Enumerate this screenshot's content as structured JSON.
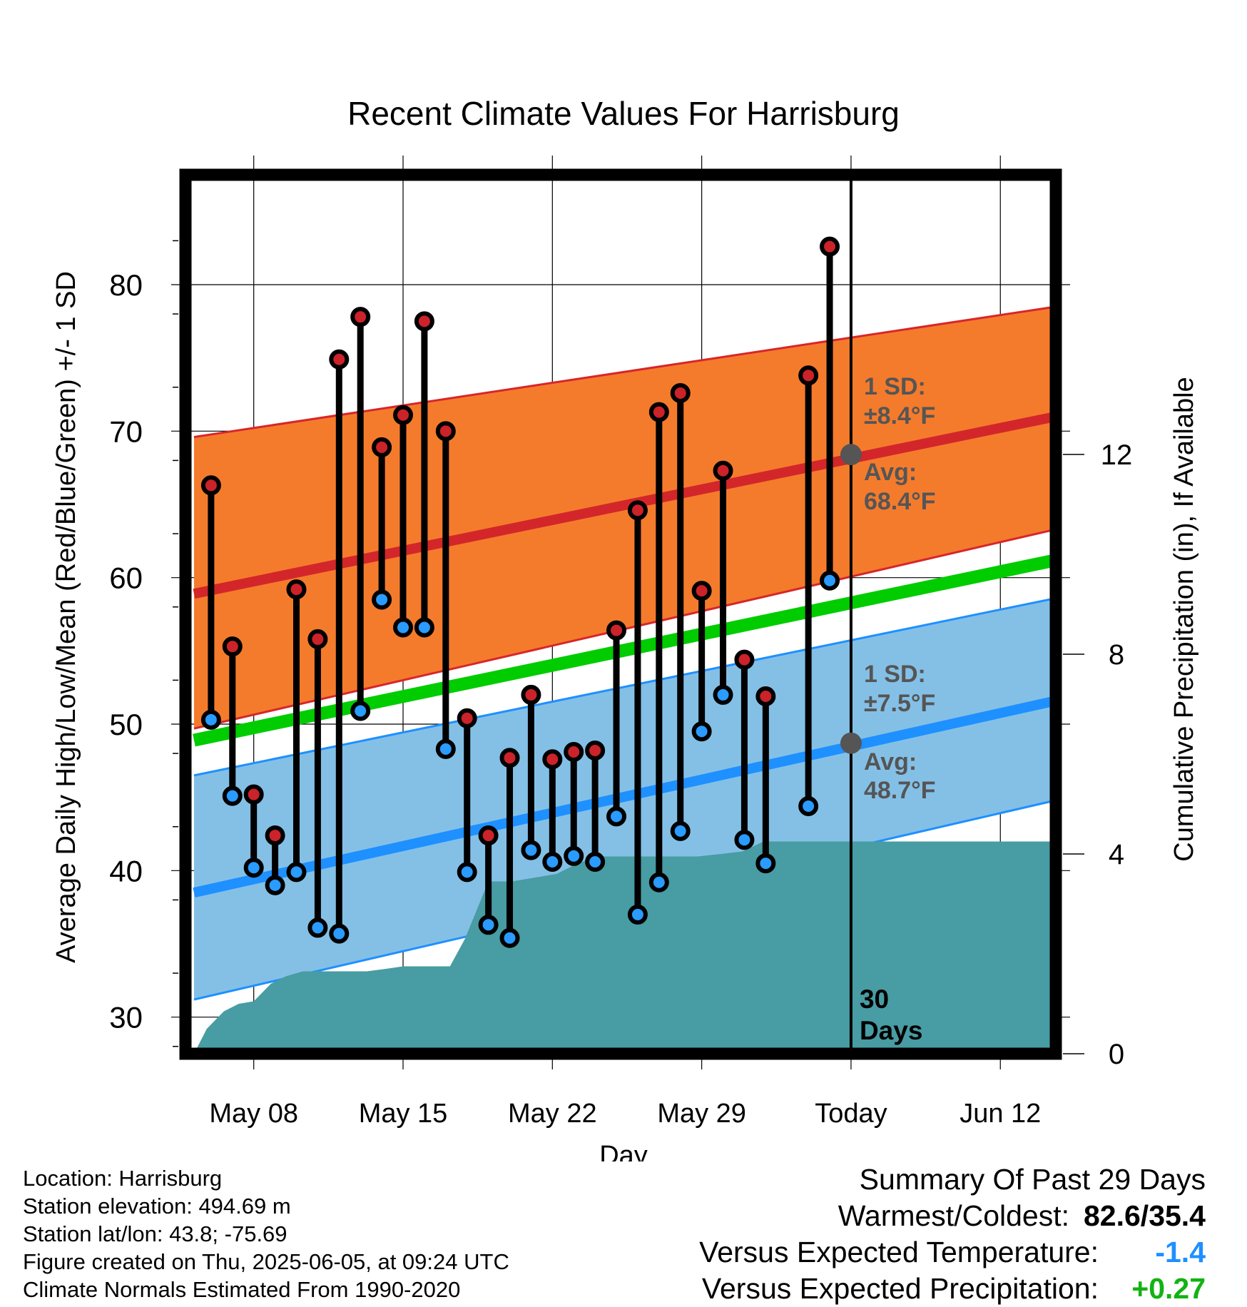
{
  "colors": {
    "high_band": "#f47b2c",
    "high_band_edge": "#d7262a",
    "high_avg": "#d3262a",
    "low_band": "#84c0e6",
    "low_band_edge": "#1e90ff",
    "low_avg": "#1e90ff",
    "mean_line": "#00cc00",
    "precip": "#489ca3",
    "high_dot": "#cc2229",
    "low_dot": "#2a9bff",
    "annot": "#555555",
    "temp_dev": "#1e90ff",
    "precip_dev": "#12b312"
  },
  "chart_data": {
    "type": "line",
    "title": "Recent Climate Values For Harrisburg",
    "xlabel": "Day",
    "ylabel": "Average Daily High/Low/Mean (Red/Blue/Green) +/- 1 SD",
    "y2label": "Cumulative Precipitation (in), If Available",
    "x_ticks": [
      "May 08",
      "May 15",
      "May 22",
      "May 29",
      "Today",
      "Jun 12"
    ],
    "x_tick_days": [
      8,
      15,
      22,
      29,
      36,
      43
    ],
    "xlim": [
      4.8,
      45.6
    ],
    "ylim": [
      27.5,
      87.5
    ],
    "y_ticks": [
      30,
      40,
      50,
      60,
      70,
      80
    ],
    "y2lim": [
      0,
      17.6
    ],
    "y2_ticks": [
      0,
      4,
      8,
      12
    ],
    "today_day": 36,
    "today_label_line1": "30",
    "today_label_line2": "Days",
    "days": [
      6,
      7,
      8,
      9,
      10,
      11,
      12,
      13,
      14,
      15,
      16,
      17,
      18,
      19,
      20,
      21,
      22,
      23,
      24,
      25,
      26,
      27,
      28,
      29,
      30,
      31,
      32,
      33,
      34,
      35
    ],
    "highs": [
      66.3,
      55.3,
      45.2,
      42.4,
      59.2,
      55.8,
      74.9,
      77.8,
      68.9,
      71.1,
      77.5,
      70.0,
      50.4,
      42.4,
      47.7,
      52.0,
      47.6,
      48.1,
      48.2,
      56.4,
      64.6,
      71.3,
      72.6,
      59.1,
      67.3,
      54.4,
      51.9,
      null,
      73.8,
      82.6
    ],
    "lows": [
      50.3,
      45.1,
      40.2,
      39.0,
      39.9,
      36.1,
      35.7,
      50.9,
      58.5,
      56.6,
      56.6,
      48.3,
      39.9,
      36.3,
      35.4,
      41.4,
      40.6,
      41.0,
      40.6,
      43.7,
      37.0,
      39.2,
      42.7,
      49.5,
      52.0,
      42.1,
      40.5,
      null,
      44.4,
      59.8
    ],
    "normal_high": {
      "x": [
        5.2,
        45.6
      ],
      "avg": [
        58.9,
        71.0
      ],
      "upper": [
        69.6,
        78.5
      ],
      "lower": [
        49.7,
        63.3
      ]
    },
    "normal_low": {
      "x": [
        5.2,
        45.6
      ],
      "avg": [
        38.5,
        51.6
      ],
      "upper": [
        46.5,
        58.6
      ],
      "lower": [
        31.2,
        44.8
      ]
    },
    "normal_mean": {
      "x": [
        5.2,
        45.6
      ],
      "values": [
        48.9,
        61.2
      ]
    },
    "precip": {
      "x": [
        5.2,
        5.8,
        6.6,
        7.3,
        8.0,
        8.8,
        9.5,
        10.3,
        11.5,
        12.5,
        13.3,
        14.2,
        15.0,
        16.2,
        17.2,
        17.9,
        19.0,
        20.1,
        21.5,
        22.2,
        22.9,
        24.0,
        26.0,
        27.4,
        28.8,
        29.9,
        30.9,
        31.9,
        36.0,
        45.6
      ],
      "values": [
        0.0,
        0.5,
        0.85,
        1.0,
        1.05,
        1.4,
        1.55,
        1.65,
        1.65,
        1.65,
        1.65,
        1.7,
        1.75,
        1.75,
        1.75,
        2.3,
        3.45,
        3.45,
        3.55,
        3.6,
        3.75,
        3.95,
        3.95,
        3.95,
        3.95,
        4.0,
        4.05,
        4.25,
        4.25,
        4.25
      ]
    },
    "annotations": {
      "high_sd_line1": "1 SD:",
      "high_sd_line2": "±8.4°F",
      "high_avg_line1": "Avg:",
      "high_avg_line2": "68.4°F",
      "high_avg_value": 68.4,
      "low_sd_line1": "1 SD:",
      "low_sd_line2": "±7.5°F",
      "low_avg_line1": "Avg:",
      "low_avg_line2": "48.7°F",
      "low_avg_value": 48.7
    }
  },
  "footer_left": {
    "location": "Location: Harrisburg",
    "elevation": "Station elevation: 494.69 m",
    "latlon": "Station lat/lon: 43.8; -75.69",
    "created": "Figure created on Thu, 2025-06-05, at 09:24 UTC",
    "normals": "Climate Normals Estimated From 1990-2020"
  },
  "footer_right": {
    "summary": "Summary Of Past 29 Days",
    "warm_label": "Warmest/Coldest:",
    "warm_value": "82.6/35.4",
    "temp_label": "Versus Expected Temperature:",
    "temp_value": "-1.4",
    "precip_label": "Versus Expected Precipitation:",
    "precip_value": "+0.27"
  }
}
